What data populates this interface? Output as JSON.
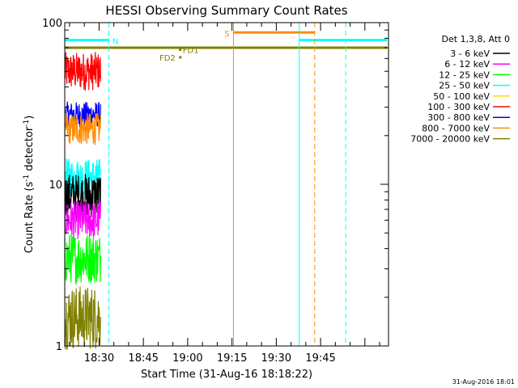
{
  "chart_data": {
    "type": "line",
    "title": "HESSI Observing Summary Count Rates",
    "xlabel": "Start Time (31-Aug-16 18:18:22)",
    "ylabel_main": "Count Rate (s",
    "ylabel_sup1": "-1",
    "ylabel_mid": " detector",
    "ylabel_sup2": "-1",
    "ylabel_end": ")",
    "yscale": "log",
    "xlim_minutes": [
      18.37,
      128.0
    ],
    "ylim": [
      1,
      100
    ],
    "x_ticks": [
      {
        "label": "18:30",
        "minutes": 30
      },
      {
        "label": "18:45",
        "minutes": 45
      },
      {
        "label": "19:00",
        "minutes": 60
      },
      {
        "label": "19:15",
        "minutes": 75
      },
      {
        "label": "19:30",
        "minutes": 90
      },
      {
        "label": "19:45",
        "minutes": 105
      }
    ],
    "y_major_ticks": [
      {
        "label": "1",
        "value": 1
      },
      {
        "label": "10",
        "value": 10
      },
      {
        "label": "100",
        "value": 100
      }
    ],
    "legend_title": "Det 1,3,8, Att 0",
    "legend_position": "top-right",
    "legend": [
      {
        "label": "3 - 6 keV",
        "color": "#000000"
      },
      {
        "label": "6 - 12 keV",
        "color": "#ff00ff"
      },
      {
        "label": "12 - 25 keV",
        "color": "#00ff00"
      },
      {
        "label": "25 - 50 keV",
        "color": "#00ffff"
      },
      {
        "label": "50 - 100 keV",
        "color": "#ffd700"
      },
      {
        "label": "100 - 300 keV",
        "color": "#ff0000"
      },
      {
        "label": "300 - 800 keV",
        "color": "#0000ff"
      },
      {
        "label": "800 - 7000 keV",
        "color": "#ff8c00"
      },
      {
        "label": "7000 - 20000 keV",
        "color": "#808000"
      }
    ],
    "series": [
      {
        "color": "#ff0000",
        "x_range": [
          18.4,
          30.5
        ],
        "level": 50,
        "spread": 0.12
      },
      {
        "color": "#0000ff",
        "x_range": [
          18.4,
          30.5
        ],
        "level": 27,
        "spread": 0.08
      },
      {
        "color": "#ff8c00",
        "x_range": [
          18.4,
          30.5
        ],
        "level": 22,
        "spread": 0.1
      },
      {
        "color": "#00ffff",
        "x_range": [
          18.4,
          30.5
        ],
        "level": 11,
        "spread": 0.12
      },
      {
        "color": "#000000",
        "x_range": [
          18.4,
          30.5
        ],
        "level": 8.5,
        "spread": 0.14
      },
      {
        "color": "#ff00ff",
        "x_range": [
          18.4,
          30.5
        ],
        "level": 6.0,
        "spread": 0.12
      },
      {
        "color": "#00ff00",
        "x_range": [
          18.4,
          30.5
        ],
        "level": 3.5,
        "spread": 0.16
      },
      {
        "color": "#808000",
        "x_range": [
          18.4,
          30.5
        ],
        "level": 1.5,
        "spread": 0.2
      }
    ],
    "state_bars": [
      {
        "label": "N",
        "color": "#00ffff",
        "x_range": [
          18.4,
          33.3
        ],
        "level": 78
      },
      {
        "label": "",
        "color": "#00ffff",
        "x_range": [
          97.8,
          127.5
        ],
        "level": 78
      },
      {
        "label": "S",
        "color": "#ff8c00",
        "x_range": [
          75.5,
          103.0
        ],
        "level": 87
      },
      {
        "label": "",
        "color": "#808000",
        "x_range": [
          18.4,
          127.5
        ],
        "level": 70
      }
    ],
    "vertical_lines": [
      {
        "color": "#00ffff",
        "minutes": 33.3,
        "dashed": true
      },
      {
        "color": "#ff8c00",
        "minutes": 75.5,
        "dashed": false
      },
      {
        "color": "#00ffff",
        "minutes": 97.8,
        "dashed": false
      },
      {
        "color": "#ff8c00",
        "minutes": 103.0,
        "dashed": true
      },
      {
        "color": "#00ffff",
        "minutes": 113.5,
        "dashed": true
      }
    ],
    "annotations": [
      {
        "text": "FD1",
        "color": "#808000",
        "minutes": 57.5,
        "value": 68
      },
      {
        "text": "FD2",
        "color": "#808000",
        "minutes": 57.5,
        "value": 61
      }
    ],
    "footer_date": "31-Aug-2016 18:01"
  }
}
